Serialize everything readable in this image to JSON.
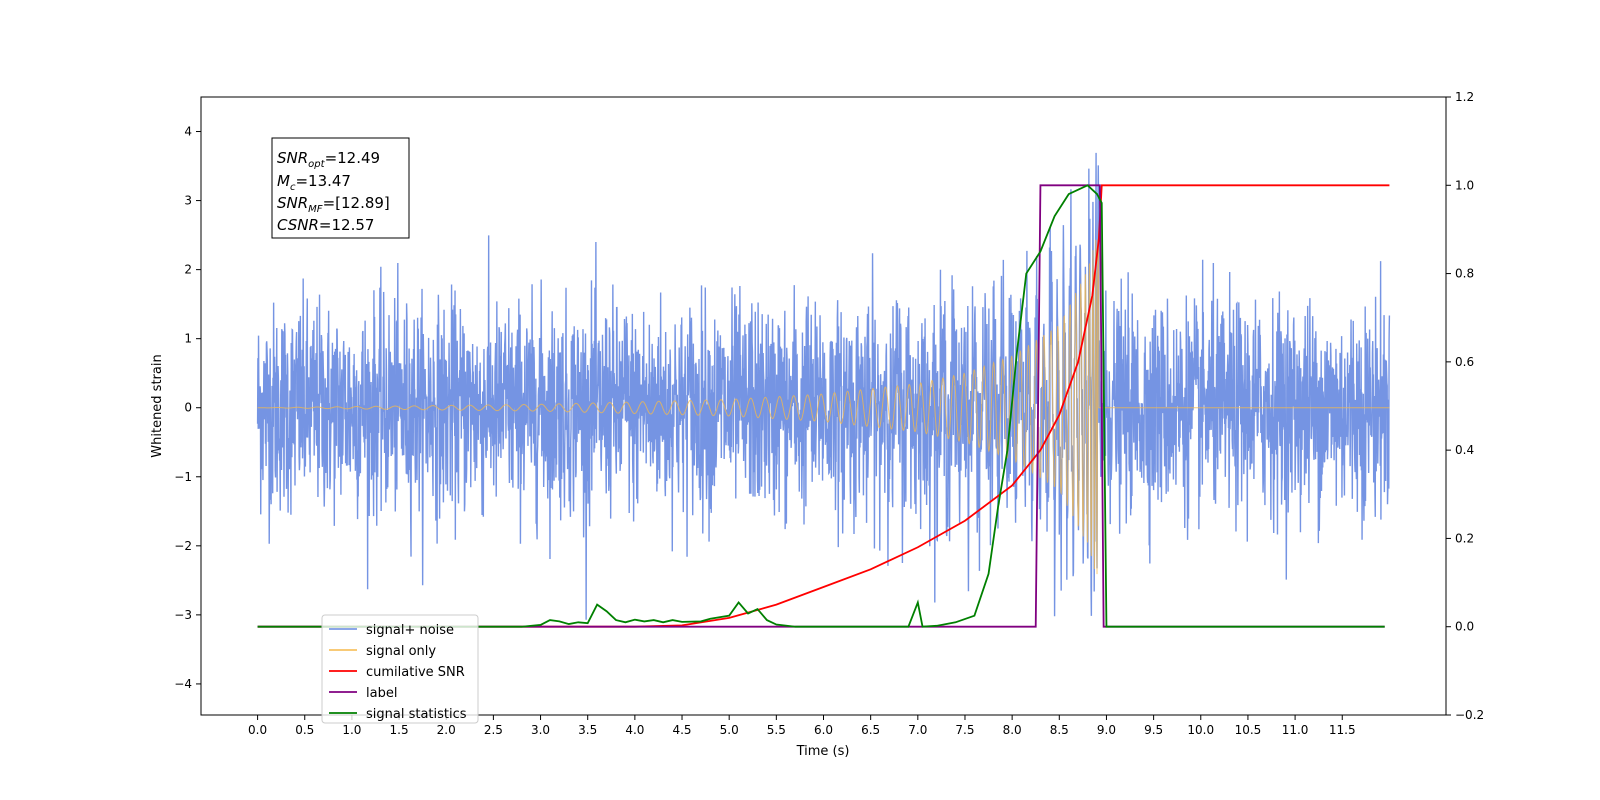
{
  "chart_data": {
    "type": "line",
    "xlabel": "Time (s)",
    "ylabel": "Whitened strain",
    "xlim": [
      -0.6,
      12.6
    ],
    "ylim": [
      -4.45,
      4.5
    ],
    "y2lim": [
      -0.2,
      1.2
    ],
    "x_ticks": [
      "0.0",
      "0.5",
      "1.0",
      "1.5",
      "2.0",
      "2.5",
      "3.0",
      "3.5",
      "4.0",
      "4.5",
      "5.0",
      "5.5",
      "6.0",
      "6.5",
      "7.0",
      "7.5",
      "8.0",
      "8.5",
      "9.0",
      "9.5",
      "10.0",
      "10.5",
      "11.0",
      "11.5"
    ],
    "y_ticks": [
      "4",
      "3",
      "2",
      "1",
      "0",
      "−1",
      "−2",
      "−3",
      "−4"
    ],
    "y2_ticks": [
      "1.2",
      "1.0",
      "0.8",
      "0.6",
      "0.4",
      "0.2",
      "0.0",
      "−0.2"
    ],
    "grid": false,
    "legend_position": "lower-left",
    "stats": {
      "snr_opt": {
        "base": "SNR",
        "sub": "opt",
        "value": "=12.49"
      },
      "mc": {
        "base": "M",
        "sub": "c",
        "value": "=13.47"
      },
      "snr_mf": {
        "base": "SNR",
        "sub": "MF",
        "value": "=[12.89]"
      },
      "csnr": {
        "base": "CSNR",
        "sub": "",
        "value": "=12.57"
      }
    },
    "series": [
      {
        "name": "signal+ noise",
        "axis": "left",
        "color": "#6688e0",
        "noise_std": 0.75,
        "t_range": [
          0.0,
          12.0
        ]
      },
      {
        "name": "signal only",
        "axis": "left",
        "color": "#f5b94a",
        "t_merger": 8.92,
        "envelope": [
          [
            0.0,
            0.0
          ],
          [
            3.0,
            0.05
          ],
          [
            5.0,
            0.12
          ],
          [
            6.0,
            0.2
          ],
          [
            7.0,
            0.35
          ],
          [
            7.5,
            0.5
          ],
          [
            8.0,
            0.75
          ],
          [
            8.5,
            1.2
          ],
          [
            8.8,
            2.0
          ],
          [
            8.92,
            2.6
          ],
          [
            8.95,
            0.0
          ],
          [
            12.0,
            0.0
          ]
        ]
      },
      {
        "name": "cumilative SNR",
        "axis": "right",
        "color": "#ff0000",
        "points": [
          [
            0.0,
            0.0
          ],
          [
            4.0,
            0.0
          ],
          [
            4.5,
            0.003
          ],
          [
            5.0,
            0.02
          ],
          [
            5.5,
            0.05
          ],
          [
            6.0,
            0.09
          ],
          [
            6.5,
            0.13
          ],
          [
            7.0,
            0.18
          ],
          [
            7.5,
            0.24
          ],
          [
            8.0,
            0.32
          ],
          [
            8.3,
            0.4
          ],
          [
            8.5,
            0.48
          ],
          [
            8.7,
            0.6
          ],
          [
            8.85,
            0.75
          ],
          [
            8.92,
            0.88
          ],
          [
            8.95,
            1.0
          ],
          [
            12.0,
            1.0
          ]
        ]
      },
      {
        "name": "label",
        "axis": "right",
        "color": "#800080",
        "points": [
          [
            0.0,
            0.0
          ],
          [
            8.25,
            0.0
          ],
          [
            8.3,
            1.0
          ],
          [
            8.93,
            1.0
          ],
          [
            8.97,
            0.0
          ],
          [
            11.95,
            0.0
          ]
        ]
      },
      {
        "name": "signal statistics",
        "axis": "right",
        "color": "#008000",
        "points": [
          [
            0.0,
            0.0
          ],
          [
            2.8,
            0.0
          ],
          [
            3.0,
            0.004
          ],
          [
            3.1,
            0.015
          ],
          [
            3.2,
            0.012
          ],
          [
            3.3,
            0.006
          ],
          [
            3.4,
            0.01
          ],
          [
            3.5,
            0.008
          ],
          [
            3.6,
            0.05
          ],
          [
            3.7,
            0.035
          ],
          [
            3.8,
            0.015
          ],
          [
            3.9,
            0.01
          ],
          [
            4.0,
            0.016
          ],
          [
            4.1,
            0.012
          ],
          [
            4.2,
            0.015
          ],
          [
            4.3,
            0.01
          ],
          [
            4.4,
            0.015
          ],
          [
            4.5,
            0.011
          ],
          [
            4.7,
            0.012
          ],
          [
            4.8,
            0.018
          ],
          [
            5.0,
            0.025
          ],
          [
            5.1,
            0.055
          ],
          [
            5.2,
            0.03
          ],
          [
            5.3,
            0.04
          ],
          [
            5.4,
            0.015
          ],
          [
            5.5,
            0.005
          ],
          [
            5.7,
            0.0
          ],
          [
            6.9,
            0.0
          ],
          [
            7.0,
            0.055
          ],
          [
            7.05,
            0.0
          ],
          [
            7.2,
            0.002
          ],
          [
            7.4,
            0.01
          ],
          [
            7.6,
            0.025
          ],
          [
            7.75,
            0.12
          ],
          [
            7.85,
            0.27
          ],
          [
            7.95,
            0.4
          ],
          [
            8.05,
            0.62
          ],
          [
            8.15,
            0.8
          ],
          [
            8.3,
            0.85
          ],
          [
            8.45,
            0.93
          ],
          [
            8.6,
            0.98
          ],
          [
            8.8,
            1.0
          ],
          [
            8.9,
            0.98
          ],
          [
            8.95,
            0.96
          ],
          [
            9.0,
            0.0
          ],
          [
            11.95,
            0.0
          ]
        ]
      }
    ]
  }
}
